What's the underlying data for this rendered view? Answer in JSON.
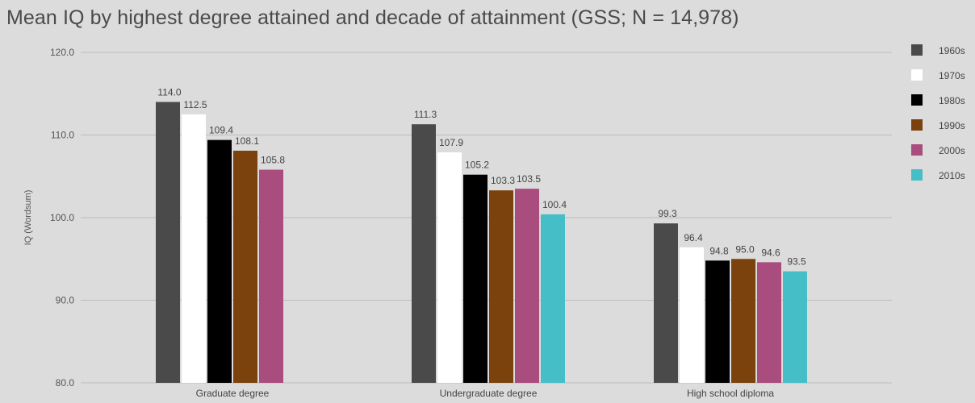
{
  "chart_data": {
    "type": "bar",
    "title": "Mean IQ by highest degree attained and decade of attainment (GSS; N = 14,978)",
    "ylabel": "IQ (Wordsum)",
    "xlabel": "",
    "ylim": [
      80,
      120
    ],
    "yticks": [
      "120.0",
      "110.0",
      "100.0",
      "90.0",
      "80.0"
    ],
    "grid": true,
    "legend_position": "right",
    "categories": [
      "Graduate degree",
      "Undergraduate degree",
      "High school diploma"
    ],
    "series": [
      {
        "name": "1960s",
        "color": "#4a4a4a",
        "values": [
          114.0,
          111.3,
          99.3
        ],
        "labels": [
          "114.0",
          "111.3",
          "99.3"
        ]
      },
      {
        "name": "1970s",
        "color": "#ffffff",
        "values": [
          112.5,
          107.9,
          96.4
        ],
        "labels": [
          "112.5",
          "107.9",
          "96.4"
        ]
      },
      {
        "name": "1980s",
        "color": "#000000",
        "values": [
          109.4,
          105.2,
          94.8
        ],
        "labels": [
          "109.4",
          "105.2",
          "94.8"
        ]
      },
      {
        "name": "1990s",
        "color": "#7b420e",
        "values": [
          108.1,
          103.3,
          95.0
        ],
        "labels": [
          "108.1",
          "103.3",
          "95.0"
        ]
      },
      {
        "name": "2000s",
        "color": "#a94d7e",
        "values": [
          105.8,
          103.5,
          94.6
        ],
        "labels": [
          "105.8",
          "103.5",
          "94.6"
        ]
      },
      {
        "name": "2010s",
        "color": "#46bec8",
        "values": [
          null,
          100.4,
          93.5
        ],
        "labels": [
          "",
          "100.4",
          "93.5"
        ]
      }
    ]
  }
}
